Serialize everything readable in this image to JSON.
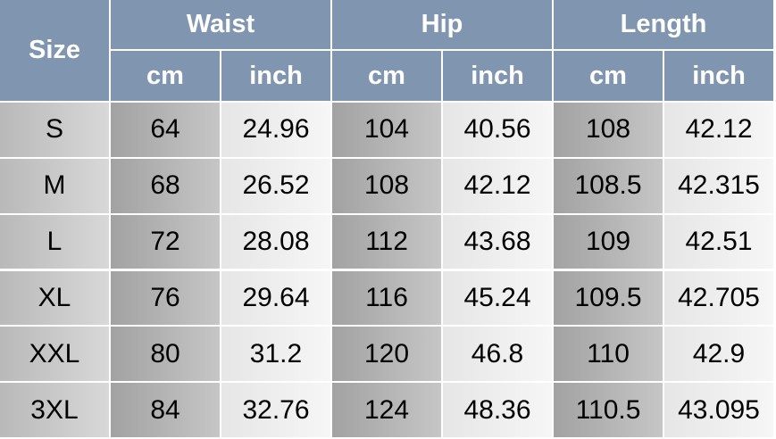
{
  "table": {
    "header": {
      "size": "Size",
      "groups": [
        "Waist",
        "Hip",
        "Length"
      ],
      "units": [
        "cm",
        "inch",
        "cm",
        "inch",
        "cm",
        "inch"
      ]
    },
    "rows": [
      [
        "S",
        64,
        24.96,
        104,
        40.56,
        108,
        42.12
      ],
      [
        "M",
        68,
        26.52,
        108,
        42.12,
        108.5,
        42.315
      ],
      [
        "L",
        72,
        28.08,
        112,
        43.68,
        109,
        42.51
      ],
      [
        "XL",
        76,
        29.64,
        116,
        45.24,
        109.5,
        42.705
      ],
      [
        "XXL",
        80,
        31.2,
        120,
        46.8,
        110,
        42.9
      ],
      [
        "3XL",
        84,
        32.76,
        124,
        48.36,
        110.5,
        43.095
      ]
    ]
  }
}
